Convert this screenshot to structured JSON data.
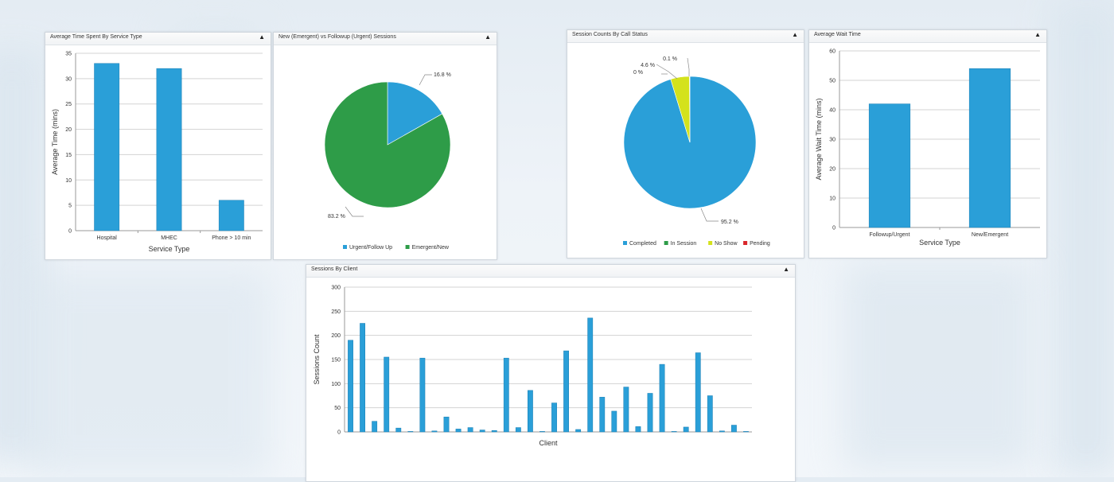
{
  "colors": {
    "blue": "#2a9fd8",
    "green": "#2e9c48",
    "yellow": "#d4e21c",
    "red": "#d9262b",
    "grid": "#d3d3d3",
    "axis": "#9a9a9a"
  },
  "widgets": {
    "avg_time": {
      "title": "Average Time Spent By Service Type",
      "toggle": "▲"
    },
    "new_vs_followup": {
      "title": "New (Emergent) vs Followup (Urgent) Sessions",
      "toggle": "▲"
    },
    "call_status": {
      "title": "Session Counts By Call Status",
      "toggle": "▲"
    },
    "avg_wait": {
      "title": "Average Wait Time",
      "toggle": "▲"
    },
    "sessions_client": {
      "title": "Sessions By Client",
      "toggle": "▲"
    }
  },
  "chart_data": [
    {
      "id": "avg_time",
      "type": "bar",
      "title": "Average Time Spent By Service Type",
      "categories": [
        "Hospital",
        "MHEC",
        "Phone > 10 min"
      ],
      "values": [
        33,
        32,
        6
      ],
      "xlabel": "Service Type",
      "ylabel": "Average Time (mins)",
      "ylim": [
        0,
        35
      ],
      "yticks": [
        0,
        5,
        10,
        15,
        20,
        25,
        30,
        35
      ],
      "grid": true
    },
    {
      "id": "new_vs_followup",
      "type": "pie",
      "title": "New (Emergent) vs Followup (Urgent) Sessions",
      "slices": [
        {
          "name": "Urgent/Follow Up",
          "value": 16.8,
          "label": "16.8 %",
          "color": "#2a9fd8"
        },
        {
          "name": "Emergent/New",
          "value": 83.2,
          "label": "83.2 %",
          "color": "#2e9c48"
        }
      ],
      "legend": "bottom"
    },
    {
      "id": "call_status",
      "type": "pie",
      "title": "Session Counts By Call Status",
      "slices": [
        {
          "name": "Completed",
          "value": 95.2,
          "label": "95.2 %",
          "color": "#2a9fd8"
        },
        {
          "name": "In Session",
          "value": 0,
          "label": "0 %",
          "color": "#2e9c48"
        },
        {
          "name": "No Show",
          "value": 4.6,
          "label": "4.6 %",
          "color": "#d4e21c"
        },
        {
          "name": "Pending",
          "value": 0.1,
          "label": "0.1 %",
          "color": "#d9262b"
        }
      ],
      "legend": "bottom"
    },
    {
      "id": "avg_wait",
      "type": "bar",
      "title": "Average Wait Time",
      "categories": [
        "Followup/Urgent",
        "New/Emergent"
      ],
      "values": [
        42,
        54
      ],
      "xlabel": "Service Type",
      "ylabel": "Average Wait Time (mins)",
      "ylim": [
        0,
        60
      ],
      "yticks": [
        0,
        10,
        20,
        30,
        40,
        50,
        60
      ],
      "grid": true
    },
    {
      "id": "sessions_client",
      "type": "bar",
      "title": "Sessions By Client",
      "values": [
        190,
        225,
        22,
        155,
        8,
        1,
        153,
        2,
        31,
        6,
        9,
        4,
        3,
        153,
        9,
        86,
        1,
        60,
        168,
        5,
        236,
        72,
        43,
        93,
        11,
        80,
        140,
        1,
        10,
        164,
        75,
        2,
        14,
        1
      ],
      "xlabel": "Client",
      "ylabel": "Sessions Count",
      "ylim": [
        0,
        300
      ],
      "yticks": [
        0,
        50,
        100,
        150,
        200,
        250,
        300
      ],
      "grid": true
    }
  ]
}
